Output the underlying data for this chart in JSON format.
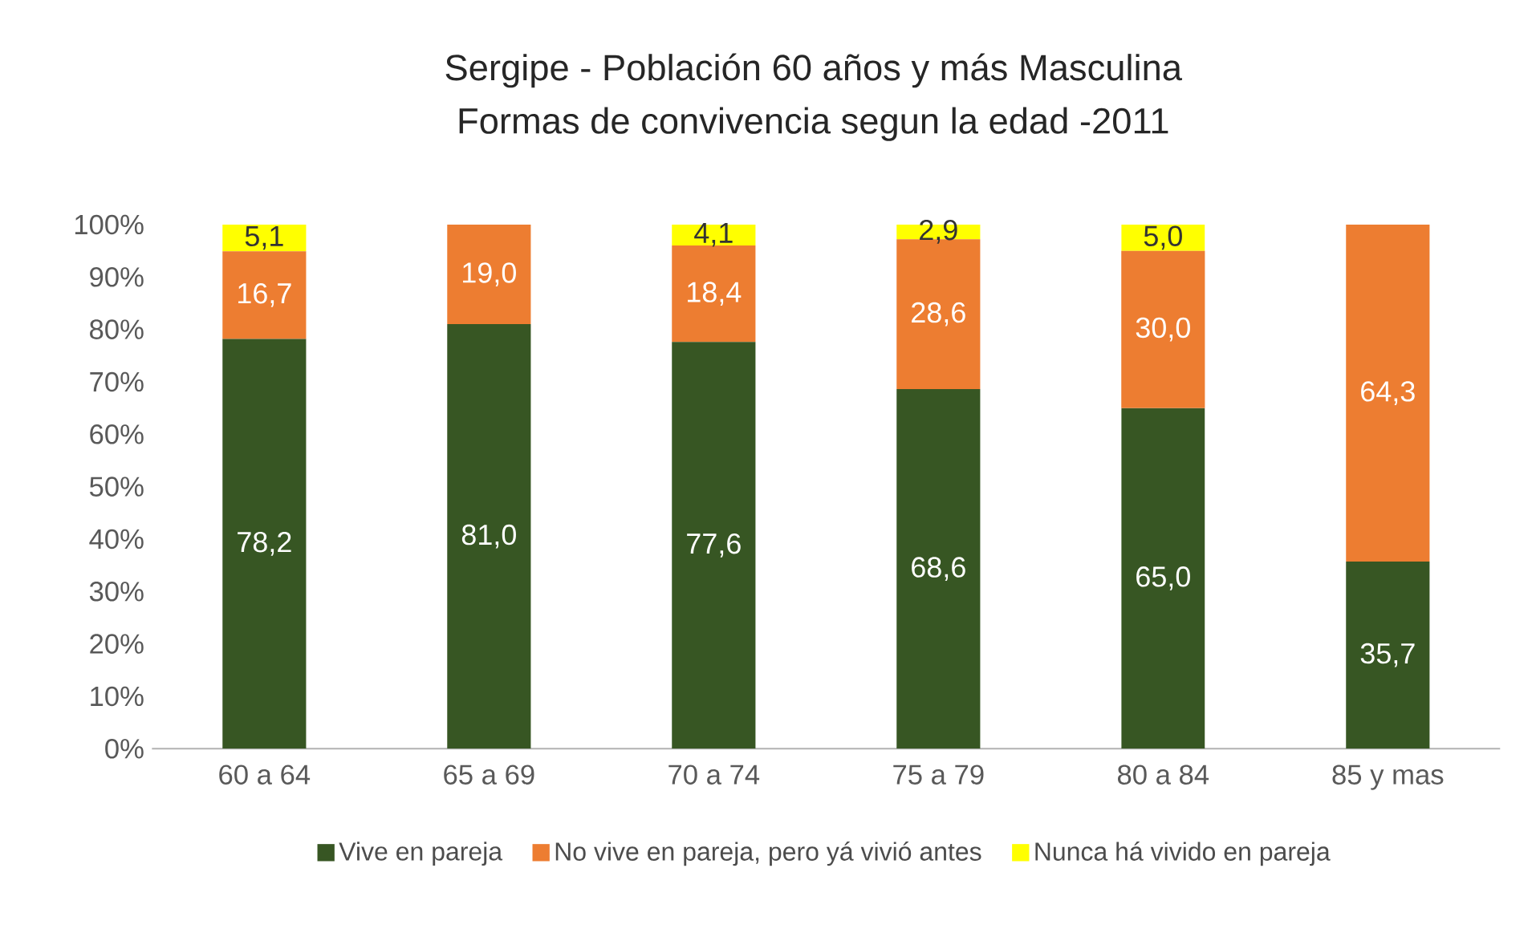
{
  "chart_data": {
    "type": "bar",
    "title": "Sergipe - Población 60 años y más Masculina",
    "subtitle": "Formas de convivencia segun la edad -2011",
    "categories": [
      "60 a 64",
      "65 a 69",
      "70 a 74",
      "75 a 79",
      "80 a 84",
      "85 y mas"
    ],
    "stacked": true,
    "ylim": [
      0,
      100
    ],
    "yticks": [
      {
        "value": 0,
        "label": "0%"
      },
      {
        "value": 10,
        "label": "10%"
      },
      {
        "value": 20,
        "label": "20%"
      },
      {
        "value": 30,
        "label": "30%"
      },
      {
        "value": 40,
        "label": "40%"
      },
      {
        "value": 50,
        "label": "50%"
      },
      {
        "value": 60,
        "label": "60%"
      },
      {
        "value": 70,
        "label": "70%"
      },
      {
        "value": 80,
        "label": "80%"
      },
      {
        "value": 90,
        "label": "90%"
      },
      {
        "value": 100,
        "label": "100%"
      }
    ],
    "legend": "bottom",
    "series": [
      {
        "name": "Vive en pareja",
        "color": "#375623",
        "values": [
          78.2,
          81.0,
          77.6,
          68.6,
          65.0,
          35.7
        ],
        "value_labels": [
          "78,2",
          "81,0",
          "77,6",
          "68,6",
          "65,0",
          "35,7"
        ]
      },
      {
        "name": "No vive en pareja, pero yá vivió antes",
        "color": "#ed7d31",
        "values": [
          16.7,
          19.0,
          18.4,
          28.6,
          30.0,
          64.3
        ],
        "value_labels": [
          "16,7",
          "19,0",
          "18,4",
          "28,6",
          "30,0",
          "64,3"
        ]
      },
      {
        "name": "Nunca há vivido en pareja",
        "color": "#ffff00",
        "values": [
          5.1,
          null,
          4.1,
          2.9,
          5.0,
          null
        ],
        "value_labels": [
          "5,1",
          null,
          "4,1",
          "2,9",
          "5,0",
          null
        ]
      }
    ]
  }
}
